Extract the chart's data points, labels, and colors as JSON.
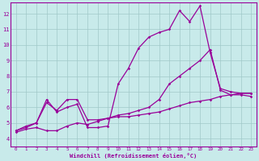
{
  "title": "",
  "xlabel": "Windchill (Refroidissement éolien,°C)",
  "ylabel": "",
  "background_color": "#c8eaea",
  "line_color": "#990099",
  "grid_color": "#a0c8c8",
  "xlim": [
    -0.5,
    23.5
  ],
  "ylim": [
    3.5,
    12.7
  ],
  "xticks": [
    0,
    1,
    2,
    3,
    4,
    5,
    6,
    7,
    8,
    9,
    10,
    11,
    12,
    13,
    14,
    15,
    16,
    17,
    18,
    19,
    20,
    21,
    22,
    23
  ],
  "yticks": [
    4,
    5,
    6,
    7,
    8,
    9,
    10,
    11,
    12
  ],
  "series": [
    {
      "x": [
        0,
        1,
        2,
        3,
        4,
        5,
        6,
        7,
        8,
        9,
        10,
        11,
        12,
        13,
        14,
        15,
        16,
        17,
        18,
        19,
        20,
        21,
        22,
        23
      ],
      "y": [
        4.4,
        4.6,
        4.7,
        4.5,
        4.5,
        4.8,
        5.0,
        4.9,
        5.1,
        5.3,
        5.4,
        5.4,
        5.5,
        5.6,
        5.7,
        5.9,
        6.1,
        6.3,
        6.4,
        6.5,
        6.7,
        6.8,
        6.9,
        6.9
      ]
    },
    {
      "x": [
        0,
        1,
        2,
        3,
        4,
        5,
        6,
        7,
        8,
        9,
        10,
        11,
        12,
        13,
        14,
        15,
        16,
        17,
        18,
        19,
        20,
        21,
        22,
        23
      ],
      "y": [
        4.5,
        4.7,
        5.0,
        6.3,
        5.8,
        6.5,
        6.5,
        5.2,
        5.2,
        5.3,
        5.5,
        5.6,
        5.8,
        6.0,
        6.5,
        7.5,
        8.0,
        8.5,
        9.0,
        9.7,
        7.1,
        6.8,
        6.8,
        6.7
      ]
    },
    {
      "x": [
        0,
        1,
        2,
        3,
        4,
        5,
        6,
        7,
        8,
        9,
        10,
        11,
        12,
        13,
        14,
        15,
        16,
        17,
        18,
        19,
        20,
        21,
        22,
        23
      ],
      "y": [
        4.5,
        4.8,
        5.0,
        6.5,
        5.7,
        6.0,
        6.2,
        4.7,
        4.7,
        4.8,
        7.5,
        8.5,
        9.8,
        10.5,
        10.8,
        11.0,
        12.2,
        11.5,
        12.5,
        9.5,
        7.2,
        7.0,
        6.9,
        6.9
      ]
    }
  ]
}
